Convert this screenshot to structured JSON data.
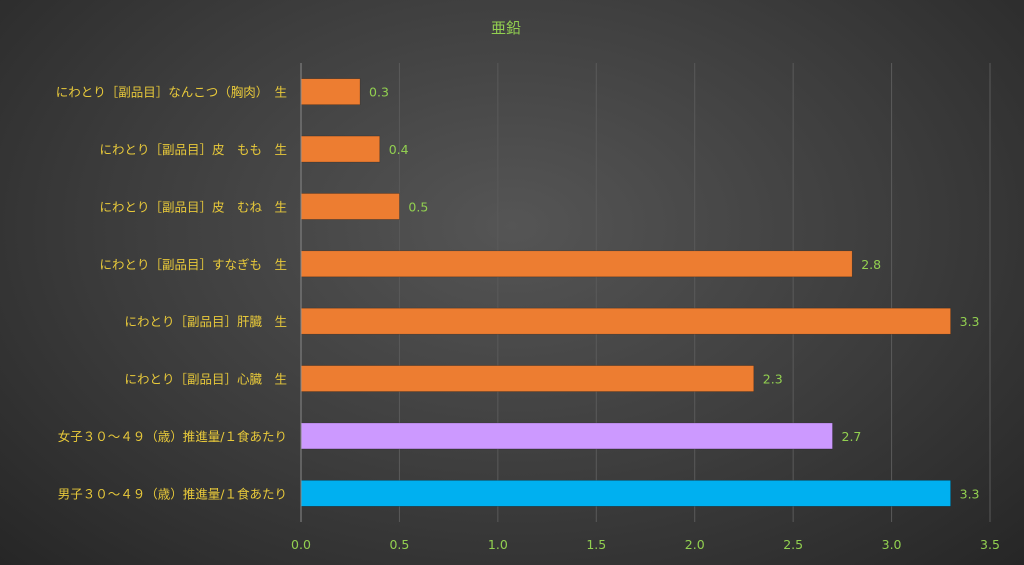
{
  "chart_data": {
    "type": "bar",
    "orientation": "horizontal",
    "title": "亜鉛",
    "xlabel": "",
    "ylabel": "",
    "xlim": [
      0,
      3.5
    ],
    "ticks": [
      "0.0",
      "0.5",
      "1.0",
      "1.5",
      "2.0",
      "2.5",
      "3.0",
      "3.5"
    ],
    "grid": true,
    "categories": [
      "にわとり［副品目］なんこつ（胸肉）　生",
      "にわとり［副品目］皮　もも　生",
      "にわとり［副品目］皮　むね　生",
      "にわとり［副品目］すなぎも　生",
      "にわとり［副品目］肝臓　生",
      "にわとり［副品目］心臓　生",
      "女子３０～４９（歳）推進量/１食あたり",
      "男子３０～４９（歳）推進量/１食あたり"
    ],
    "values": [
      0.3,
      0.4,
      0.5,
      2.8,
      3.3,
      2.3,
      2.7,
      3.3
    ],
    "value_labels": [
      "0.3",
      "0.4",
      "0.5",
      "2.8",
      "3.3",
      "2.3",
      "2.7",
      "3.3"
    ],
    "bar_colors": [
      "#ed7d31",
      "#ed7d31",
      "#ed7d31",
      "#ed7d31",
      "#ed7d31",
      "#ed7d31",
      "#cc99ff",
      "#00b0f0"
    ]
  }
}
